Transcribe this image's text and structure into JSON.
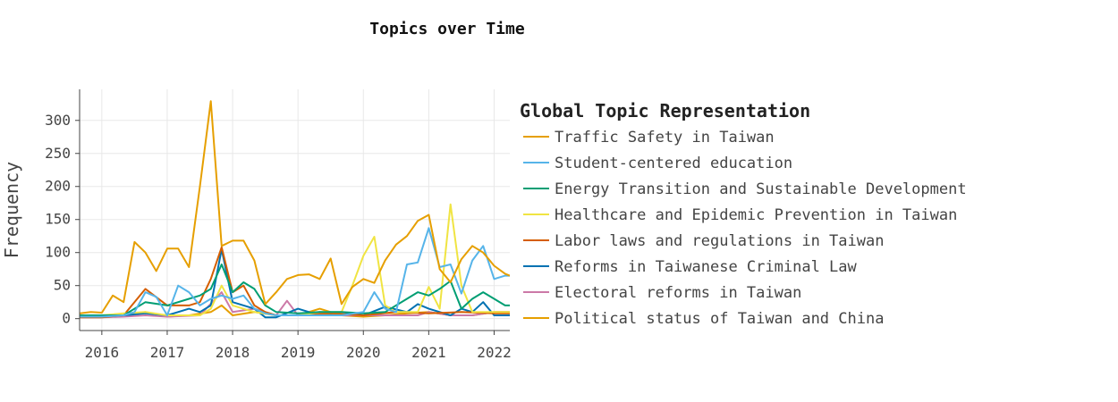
{
  "chart_data": {
    "type": "line",
    "title": "Topics over Time",
    "xlabel": "",
    "ylabel": "Frequency",
    "x_ticks": [
      "2016",
      "2017",
      "2018",
      "2019",
      "2020",
      "2021",
      "2022"
    ],
    "y_ticks": [
      "0",
      "50",
      "100",
      "150",
      "200",
      "250",
      "300"
    ],
    "xlim": [
      2015.66,
      2022.24
    ],
    "ylim": [
      -18,
      347
    ],
    "grid": true,
    "legend_title": "Global Topic Representation",
    "legend_position": "right",
    "series": [
      {
        "name": "Traffic Safety in Taiwan",
        "color": "#e69f00",
        "x": [
          2015.667,
          2015.833,
          2016.0,
          2016.167,
          2016.333,
          2016.5,
          2016.667,
          2016.833,
          2017.0,
          2017.167,
          2017.333,
          2017.5,
          2017.667,
          2017.833,
          2018.0,
          2018.167,
          2018.333,
          2018.5,
          2018.667,
          2018.833,
          2019.0,
          2019.167,
          2019.333,
          2019.5,
          2019.667,
          2019.833,
          2020.0,
          2020.167,
          2020.333,
          2020.5,
          2020.667,
          2020.833,
          2021.0,
          2021.167,
          2021.333,
          2021.5,
          2021.667,
          2021.833,
          2022.0,
          2022.167,
          2022.24
        ],
        "y": [
          8,
          10,
          9,
          35,
          25,
          116,
          100,
          72,
          106,
          106,
          78,
          200,
          329,
          110,
          118,
          118,
          88,
          22,
          40,
          60,
          66,
          67,
          60,
          91,
          22,
          48,
          60,
          54,
          88,
          112,
          125,
          148,
          157,
          75,
          55,
          90,
          110,
          100,
          80,
          68,
          65
        ]
      },
      {
        "name": "Student-centered education",
        "color": "#56b4e9",
        "x": [
          2015.667,
          2016.0,
          2016.333,
          2016.5,
          2016.667,
          2016.833,
          2017.0,
          2017.167,
          2017.333,
          2017.5,
          2017.667,
          2017.833,
          2018.0,
          2018.167,
          2018.333,
          2018.5,
          2018.667,
          2019.0,
          2019.333,
          2019.667,
          2020.0,
          2020.167,
          2020.333,
          2020.5,
          2020.667,
          2020.833,
          2021.0,
          2021.167,
          2021.333,
          2021.5,
          2021.667,
          2021.833,
          2022.0,
          2022.167,
          2022.24
        ],
        "y": [
          3,
          3,
          5,
          10,
          40,
          33,
          5,
          50,
          40,
          20,
          30,
          35,
          30,
          35,
          15,
          8,
          5,
          5,
          5,
          5,
          10,
          40,
          15,
          10,
          82,
          85,
          137,
          78,
          82,
          38,
          88,
          110,
          60,
          65,
          65
        ]
      },
      {
        "name": "Energy Transition and Sustainable Development",
        "color": "#009e73",
        "x": [
          2015.667,
          2016.0,
          2016.333,
          2016.667,
          2017.0,
          2017.333,
          2017.5,
          2017.667,
          2017.833,
          2018.0,
          2018.167,
          2018.333,
          2018.5,
          2018.667,
          2019.0,
          2019.333,
          2019.667,
          2020.0,
          2020.333,
          2020.667,
          2020.833,
          2021.0,
          2021.167,
          2021.333,
          2021.5,
          2021.667,
          2021.833,
          2022.0,
          2022.167,
          2022.24
        ],
        "y": [
          5,
          5,
          5,
          25,
          20,
          30,
          35,
          45,
          82,
          40,
          55,
          45,
          20,
          10,
          8,
          10,
          10,
          8,
          10,
          30,
          40,
          35,
          45,
          57,
          15,
          30,
          40,
          30,
          20,
          20
        ]
      },
      {
        "name": "Healthcare and Epidemic Prevention in Taiwan",
        "color": "#f0e442",
        "x": [
          2015.667,
          2016.0,
          2016.333,
          2016.667,
          2017.0,
          2017.333,
          2017.5,
          2017.667,
          2017.833,
          2018.0,
          2018.333,
          2018.667,
          2019.0,
          2019.333,
          2019.667,
          2019.833,
          2020.0,
          2020.167,
          2020.333,
          2020.5,
          2020.833,
          2021.0,
          2021.167,
          2021.333,
          2021.5,
          2021.667,
          2021.833,
          2022.0,
          2022.24
        ],
        "y": [
          5,
          5,
          8,
          10,
          5,
          5,
          5,
          15,
          50,
          20,
          10,
          5,
          5,
          10,
          10,
          50,
          95,
          124,
          20,
          10,
          10,
          48,
          15,
          173,
          50,
          10,
          10,
          10,
          10
        ]
      },
      {
        "name": "Labor laws and regulations in Taiwan",
        "color": "#d55e00",
        "x": [
          2015.667,
          2016.0,
          2016.333,
          2016.667,
          2017.0,
          2017.333,
          2017.5,
          2017.667,
          2017.833,
          2018.0,
          2018.167,
          2018.333,
          2018.5,
          2018.667,
          2019.0,
          2019.5,
          2020.0,
          2020.5,
          2021.0,
          2021.5,
          2022.0,
          2022.24
        ],
        "y": [
          2,
          2,
          5,
          45,
          20,
          20,
          25,
          60,
          108,
          40,
          50,
          20,
          10,
          5,
          5,
          8,
          5,
          10,
          8,
          10,
          8,
          8
        ]
      },
      {
        "name": "Reforms in Taiwanese Criminal Law",
        "color": "#0072b2",
        "x": [
          2015.667,
          2016.0,
          2016.333,
          2016.667,
          2017.0,
          2017.333,
          2017.5,
          2017.667,
          2017.833,
          2018.0,
          2018.333,
          2018.5,
          2018.667,
          2019.0,
          2019.333,
          2019.667,
          2020.0,
          2020.333,
          2020.667,
          2020.833,
          2021.0,
          2021.333,
          2021.5,
          2021.667,
          2021.833,
          2022.0,
          2022.24
        ],
        "y": [
          3,
          3,
          5,
          8,
          5,
          15,
          10,
          20,
          105,
          25,
          15,
          2,
          2,
          15,
          5,
          10,
          5,
          18,
          10,
          22,
          15,
          5,
          15,
          10,
          25,
          5,
          5
        ]
      },
      {
        "name": "Electoral reforms in Taiwan",
        "color": "#cc79a7",
        "x": [
          2015.667,
          2016.0,
          2016.333,
          2016.667,
          2017.0,
          2017.5,
          2017.833,
          2018.0,
          2018.333,
          2018.667,
          2018.833,
          2019.0,
          2019.333,
          2019.667,
          2020.0,
          2020.5,
          2020.833,
          2021.0,
          2021.333,
          2021.667,
          2022.0,
          2022.24
        ],
        "y": [
          2,
          2,
          3,
          5,
          3,
          5,
          40,
          10,
          15,
          5,
          27,
          5,
          10,
          5,
          5,
          5,
          5,
          10,
          5,
          5,
          10,
          10
        ]
      },
      {
        "name": "Political status of Taiwan and China",
        "color": "#e69f00",
        "x": [
          2015.667,
          2016.0,
          2016.333,
          2016.667,
          2017.0,
          2017.333,
          2017.667,
          2017.833,
          2018.0,
          2018.333,
          2018.667,
          2019.0,
          2019.333,
          2019.667,
          2020.0,
          2020.333,
          2020.667,
          2021.0,
          2021.333,
          2021.667,
          2022.0,
          2022.24
        ],
        "y": [
          3,
          3,
          5,
          10,
          3,
          5,
          10,
          20,
          5,
          10,
          5,
          5,
          15,
          5,
          3,
          5,
          8,
          10,
          5,
          5,
          10,
          10
        ]
      }
    ]
  }
}
